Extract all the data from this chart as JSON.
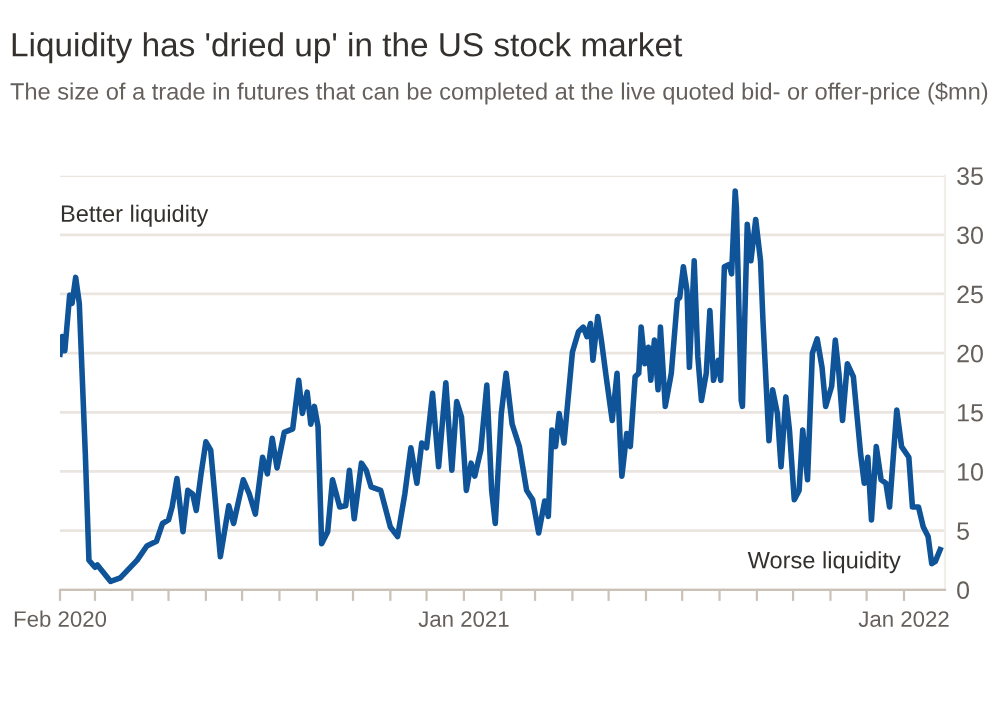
{
  "chart_data": {
    "type": "line",
    "title": "Liquidity has 'dried up' in the US stock market",
    "subtitle": "The size of a trade in futures that can be completed at the live quoted bid- or offer-price ($mn)",
    "annotations": [
      "Better liquidity",
      "Worse liquidity"
    ],
    "x": [
      "2020-02-01",
      "2020-02-03",
      "2020-02-05",
      "2020-02-09",
      "2020-02-11",
      "2020-02-14",
      "2020-02-17",
      "2020-02-22",
      "2020-02-25",
      "2020-03-01",
      "2020-03-03",
      "2020-03-14",
      "2020-03-22",
      "2020-04-05",
      "2020-04-13",
      "2020-04-21",
      "2020-04-26",
      "2020-05-01",
      "2020-05-04",
      "2020-05-08",
      "2020-05-13",
      "2020-05-17",
      "2020-05-21",
      "2020-05-24",
      "2020-05-28",
      "2020-06-01",
      "2020-06-05",
      "2020-06-13",
      "2020-06-20",
      "2020-06-24",
      "2020-07-02",
      "2020-07-07",
      "2020-07-12",
      "2020-07-18",
      "2020-07-22",
      "2020-07-26",
      "2020-07-30",
      "2020-08-05",
      "2020-08-12",
      "2020-08-17",
      "2020-08-20",
      "2020-08-24",
      "2020-08-27",
      "2020-08-30",
      "2020-09-02",
      "2020-09-05",
      "2020-09-10",
      "2020-09-14",
      "2020-09-20",
      "2020-09-25",
      "2020-09-28",
      "2020-10-02",
      "2020-10-08",
      "2020-10-12",
      "2020-10-16",
      "2020-10-24",
      "2020-11-01",
      "2020-11-07",
      "2020-11-13",
      "2020-11-18",
      "2020-11-23",
      "2020-11-27",
      "2020-12-01",
      "2020-12-06",
      "2020-12-11",
      "2020-12-17",
      "2020-12-22",
      "2020-12-26",
      "2020-12-30",
      "2021-01-03",
      "2021-01-07",
      "2021-01-10",
      "2021-01-15",
      "2021-01-20",
      "2021-01-24",
      "2021-01-27",
      "2021-02-01",
      "2021-02-05",
      "2021-02-10",
      "2021-02-16",
      "2021-02-22",
      "2021-02-27",
      "2021-03-04",
      "2021-03-09",
      "2021-03-12",
      "2021-03-15",
      "2021-03-18",
      "2021-03-21",
      "2021-03-25",
      "2021-04-01",
      "2021-04-06",
      "2021-04-10",
      "2021-04-13",
      "2021-04-16",
      "2021-04-18",
      "2021-04-22",
      "2021-04-25",
      "2021-04-29",
      "2021-05-04",
      "2021-05-08",
      "2021-05-12",
      "2021-05-16",
      "2021-05-19",
      "2021-05-23",
      "2021-05-26",
      "2021-05-28",
      "2021-05-31",
      "2021-06-03",
      "2021-06-05",
      "2021-06-08",
      "2021-06-11",
      "2021-06-13",
      "2021-06-17",
      "2021-06-22",
      "2021-06-27",
      "2021-06-29",
      "2021-07-02",
      "2021-07-05",
      "2021-07-07",
      "2021-07-11",
      "2021-07-14",
      "2021-07-17",
      "2021-07-21",
      "2021-07-24",
      "2021-07-27",
      "2021-07-31",
      "2021-08-02",
      "2021-08-05",
      "2021-08-09",
      "2021-08-11",
      "2021-08-14",
      "2021-08-15",
      "2021-08-19",
      "2021-08-20",
      "2021-08-24",
      "2021-08-27",
      "2021-08-31",
      "2021-09-04",
      "2021-09-06",
      "2021-09-11",
      "2021-09-14",
      "2021-09-18",
      "2021-09-21",
      "2021-09-25",
      "2021-09-28",
      "2021-10-02",
      "2021-10-06",
      "2021-10-09",
      "2021-10-13",
      "2021-10-17",
      "2021-10-21",
      "2021-10-25",
      "2021-10-28",
      "2021-11-02",
      "2021-11-05",
      "2021-11-08",
      "2021-11-11",
      "2021-11-15",
      "2021-11-20",
      "2021-11-26",
      "2021-11-29",
      "2021-12-02",
      "2021-12-05",
      "2021-12-09",
      "2021-12-13",
      "2021-12-17",
      "2021-12-20",
      "2021-12-26",
      "2021-12-30",
      "2022-01-05",
      "2022-01-08",
      "2022-01-13",
      "2022-01-17",
      "2022-01-21",
      "2022-01-24",
      "2022-01-27",
      "2022-01-31"
    ],
    "series": [
      {
        "color": "#0f5499",
        "values": [
          19.9,
          21.4,
          20.2,
          24.9,
          24.2,
          26.4,
          24.2,
          11.5,
          2.5,
          1.9,
          2.1,
          0.7,
          1.0,
          2.5,
          3.7,
          4.1,
          5.6,
          5.9,
          7.0,
          9.4,
          4.9,
          8.4,
          8.1,
          6.7,
          9.8,
          12.5,
          11.8,
          2.8,
          7.1,
          5.6,
          9.3,
          8.1,
          6.4,
          11.2,
          9.8,
          12.8,
          10.3,
          13.3,
          13.6,
          17.7,
          14.9,
          16.7,
          14.0,
          15.5,
          13.8,
          3.9,
          4.9,
          9.3,
          7.0,
          7.1,
          10.1,
          6.0,
          10.7,
          10.1,
          8.7,
          8.4,
          5.3,
          4.5,
          8.1,
          12.0,
          9.0,
          12.4,
          12.0,
          16.6,
          10.4,
          17.5,
          10.1,
          15.9,
          14.6,
          8.4,
          10.7,
          9.6,
          11.8,
          17.3,
          8.4,
          5.6,
          14.9,
          18.3,
          14.0,
          12.1,
          8.4,
          7.6,
          4.8,
          7.5,
          6.2,
          13.5,
          12.1,
          14.9,
          12.4,
          20.1,
          21.8,
          22.2,
          21.4,
          22.5,
          19.4,
          23.1,
          21.1,
          18.0,
          14.3,
          18.3,
          9.6,
          13.2,
          12.1,
          18.0,
          18.3,
          22.2,
          19.1,
          20.5,
          17.7,
          21.1,
          16.9,
          22.2,
          15.5,
          18.3,
          24.5,
          24.7,
          27.3,
          25.3,
          18.8,
          27.8,
          19.7,
          16.0,
          18.3,
          23.6,
          17.7,
          19.4,
          17.7,
          27.3,
          27.5,
          26.7,
          33.7,
          32.3,
          16.0,
          15.5,
          30.9,
          27.8,
          31.3,
          27.8,
          22.8,
          12.6,
          16.9,
          14.9,
          10.4,
          16.3,
          13.5,
          7.6,
          8.4,
          13.5,
          9.3,
          20.0,
          21.2,
          18.8,
          15.5,
          17.2,
          21.1,
          18.3,
          14.3,
          19.1,
          18.0,
          11.5,
          9.0,
          11.2,
          5.9,
          12.1,
          9.3,
          9.0,
          7.0,
          15.2,
          12.1,
          11.2,
          7.0,
          7.0,
          5.3,
          4.5,
          2.2,
          2.4,
          3.4
        ]
      }
    ],
    "xlim": [
      "2020-02-01",
      "2022-02-04"
    ],
    "xticks": [
      {
        "value": "2020-02-01",
        "label": "Feb 2020"
      },
      {
        "value": "2020-03-01",
        "label": null
      },
      {
        "value": "2020-04-01",
        "label": null
      },
      {
        "value": "2020-05-01",
        "label": null
      },
      {
        "value": "2020-06-01",
        "label": null
      },
      {
        "value": "2020-07-01",
        "label": null
      },
      {
        "value": "2020-08-01",
        "label": null
      },
      {
        "value": "2020-09-01",
        "label": null
      },
      {
        "value": "2020-10-01",
        "label": null
      },
      {
        "value": "2020-11-01",
        "label": null
      },
      {
        "value": "2020-12-01",
        "label": null
      },
      {
        "value": "2021-01-01",
        "label": "Jan 2021"
      },
      {
        "value": "2021-02-01",
        "label": null
      },
      {
        "value": "2021-03-01",
        "label": null
      },
      {
        "value": "2021-04-01",
        "label": null
      },
      {
        "value": "2021-05-01",
        "label": null
      },
      {
        "value": "2021-06-01",
        "label": null
      },
      {
        "value": "2021-07-01",
        "label": null
      },
      {
        "value": "2021-08-01",
        "label": null
      },
      {
        "value": "2021-09-01",
        "label": null
      },
      {
        "value": "2021-10-01",
        "label": null
      },
      {
        "value": "2021-11-01",
        "label": null
      },
      {
        "value": "2021-12-01",
        "label": null
      },
      {
        "value": "2022-01-01",
        "label": "Jan 2022"
      }
    ],
    "ylim": [
      0,
      35
    ],
    "yticks": [
      0,
      5,
      10,
      15,
      20,
      25,
      30,
      35
    ],
    "grid": "y",
    "legend": false,
    "marker": "none",
    "line_style": "solid"
  }
}
